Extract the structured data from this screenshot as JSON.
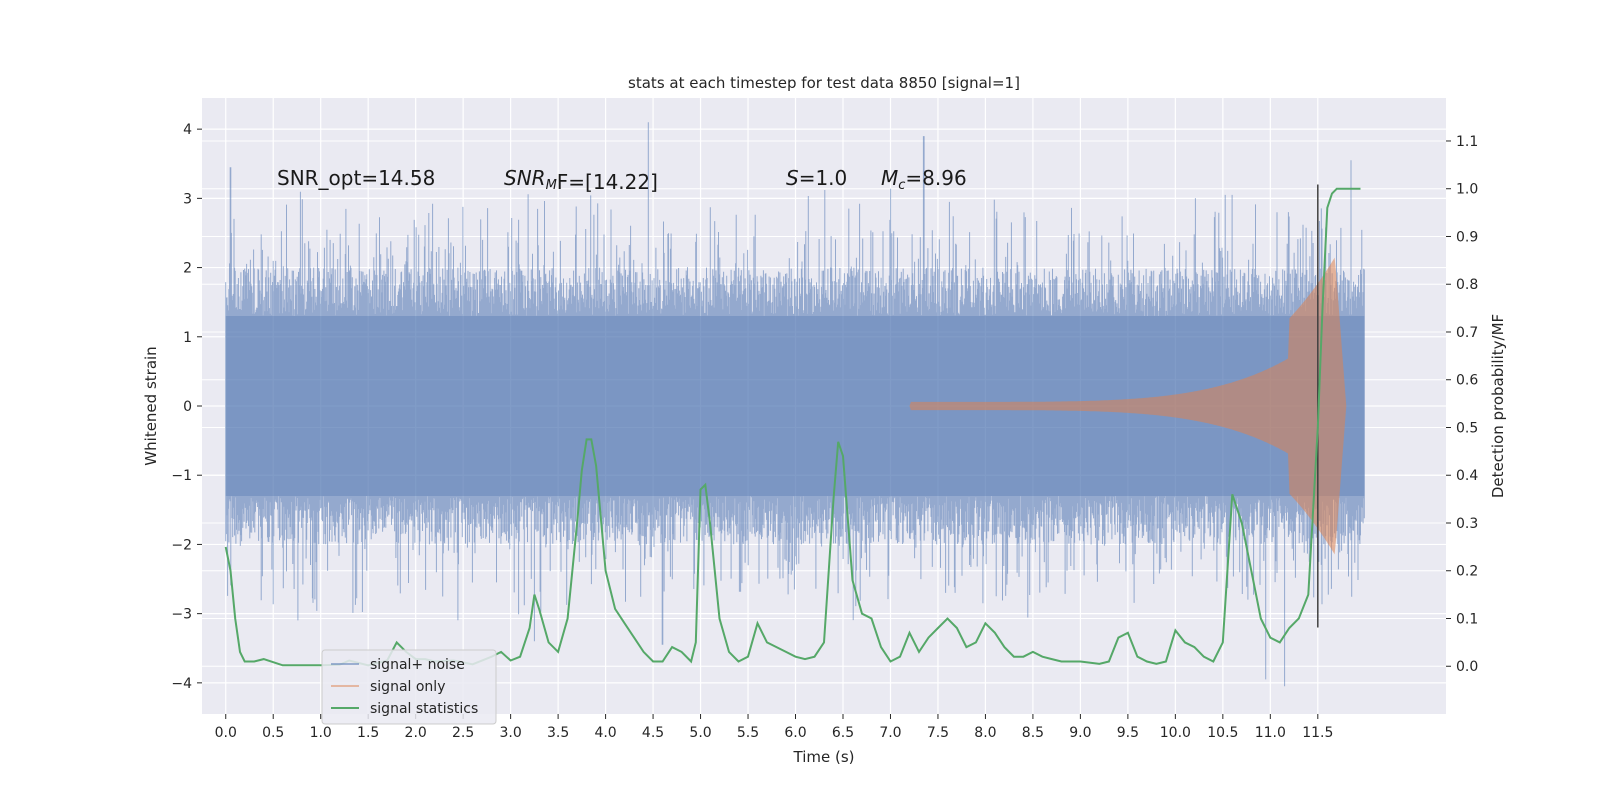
{
  "chart_data": {
    "type": "line",
    "title": "stats at each timestep for test data 8850 [signal=1]",
    "xlabel": "Time (s)",
    "ylabel": "Whitened strain",
    "y2label": "Detection probability/MF",
    "xlim": [
      -0.25,
      12.85
    ],
    "ylim": [
      -4.45,
      4.45
    ],
    "y2lim": [
      -0.1,
      1.19
    ],
    "x_ticks": [
      "0.0",
      "0.5",
      "1.0",
      "1.5",
      "2.0",
      "2.5",
      "3.0",
      "3.5",
      "4.0",
      "4.5",
      "5.0",
      "5.5",
      "6.0",
      "6.5",
      "7.0",
      "7.5",
      "8.0",
      "8.5",
      "9.0",
      "9.5",
      "10.0",
      "10.5",
      "11.0",
      "11.5"
    ],
    "y_ticks": [
      "4",
      "3",
      "2",
      "1",
      "0",
      "−1",
      "−2",
      "−3",
      "−4"
    ],
    "y2_ticks": [
      "1.1",
      "1.0",
      "0.9",
      "0.8",
      "0.7",
      "0.6",
      "0.5",
      "0.4",
      "0.3",
      "0.2",
      "0.1",
      "0.0"
    ],
    "grid": true,
    "legend_position": "bottom-left",
    "annotations": {
      "snr_opt": "SNR_opt=14.58",
      "snr_mf_prefix": "SNR",
      "snr_mf_sub": "M",
      "snr_mf_suffix": "F=[14.22]",
      "s_prefix": "S",
      "s_value": "=1.0",
      "mc_prefix": "M",
      "mc_sub": "c",
      "mc_value": "=8.96"
    },
    "series": [
      {
        "name": "signal+ noise",
        "color": "#4c72b0",
        "x_range": [
          0.0,
          11.99
        ],
        "envelope": {
          "core": 1.3,
          "typical": 2.0,
          "max": 4.1,
          "min": -4.05
        },
        "peaks": [
          [
            0.05,
            3.45
          ],
          [
            4.45,
            4.1
          ],
          [
            7.35,
            3.9
          ],
          [
            11.85,
            3.55
          ],
          [
            10.95,
            -3.95
          ],
          [
            11.15,
            -4.05
          ],
          [
            4.6,
            -3.45
          ],
          [
            3.25,
            -3.4
          ]
        ]
      },
      {
        "name": "signal only",
        "color": "#dd8452",
        "chirp": {
          "start": 7.2,
          "merger": 11.68,
          "end": 11.8,
          "peak_amplitude": 2.15
        }
      },
      {
        "name": "signal statistics",
        "color": "#55a868",
        "x": [
          0.0,
          0.05,
          0.1,
          0.15,
          0.2,
          0.3,
          0.4,
          0.6,
          0.8,
          1.0,
          1.2,
          1.3,
          1.5,
          1.7,
          1.8,
          1.9,
          2.0,
          2.1,
          2.2,
          2.4,
          2.6,
          2.8,
          2.9,
          3.0,
          3.1,
          3.2,
          3.25,
          3.3,
          3.4,
          3.5,
          3.6,
          3.7,
          3.75,
          3.8,
          3.85,
          3.9,
          4.0,
          4.1,
          4.2,
          4.3,
          4.4,
          4.5,
          4.6,
          4.7,
          4.8,
          4.9,
          4.95,
          5.0,
          5.05,
          5.1,
          5.2,
          5.3,
          5.4,
          5.5,
          5.6,
          5.7,
          5.8,
          5.9,
          6.0,
          6.1,
          6.2,
          6.3,
          6.4,
          6.45,
          6.5,
          6.6,
          6.7,
          6.8,
          6.9,
          7.0,
          7.1,
          7.2,
          7.3,
          7.4,
          7.5,
          7.6,
          7.7,
          7.8,
          7.9,
          8.0,
          8.1,
          8.2,
          8.3,
          8.4,
          8.5,
          8.6,
          8.7,
          8.8,
          9.0,
          9.2,
          9.3,
          9.4,
          9.5,
          9.6,
          9.7,
          9.8,
          9.9,
          10.0,
          10.1,
          10.2,
          10.3,
          10.4,
          10.5,
          10.6,
          10.7,
          10.8,
          10.9,
          11.0,
          11.1,
          11.2,
          11.3,
          11.4,
          11.5,
          11.55,
          11.6,
          11.65,
          11.7,
          11.8,
          11.9,
          11.95
        ],
        "values": [
          0.25,
          0.2,
          0.1,
          0.03,
          0.01,
          0.01,
          0.015,
          0.002,
          0.002,
          0.002,
          0.003,
          0.012,
          0.002,
          0.012,
          0.05,
          0.03,
          0.015,
          0.015,
          0.01,
          0.012,
          0.004,
          0.02,
          0.03,
          0.012,
          0.02,
          0.08,
          0.15,
          0.12,
          0.05,
          0.03,
          0.1,
          0.3,
          0.41,
          0.475,
          0.475,
          0.42,
          0.2,
          0.12,
          0.09,
          0.06,
          0.03,
          0.01,
          0.01,
          0.04,
          0.03,
          0.01,
          0.05,
          0.37,
          0.38,
          0.3,
          0.1,
          0.03,
          0.01,
          0.02,
          0.09,
          0.05,
          0.04,
          0.03,
          0.02,
          0.015,
          0.02,
          0.05,
          0.35,
          0.47,
          0.44,
          0.18,
          0.11,
          0.1,
          0.04,
          0.01,
          0.02,
          0.07,
          0.03,
          0.06,
          0.08,
          0.1,
          0.08,
          0.04,
          0.05,
          0.09,
          0.07,
          0.04,
          0.02,
          0.02,
          0.03,
          0.02,
          0.015,
          0.01,
          0.01,
          0.005,
          0.01,
          0.06,
          0.07,
          0.02,
          0.01,
          0.005,
          0.01,
          0.075,
          0.05,
          0.04,
          0.02,
          0.01,
          0.05,
          0.36,
          0.3,
          0.2,
          0.1,
          0.06,
          0.05,
          0.08,
          0.1,
          0.15,
          0.5,
          0.75,
          0.96,
          0.99,
          1.0,
          1.0,
          1.0,
          1.0
        ]
      }
    ],
    "vertical_line": {
      "x": 11.5,
      "y_from": -3.2,
      "y_to": 3.2,
      "color": "#404040"
    }
  }
}
